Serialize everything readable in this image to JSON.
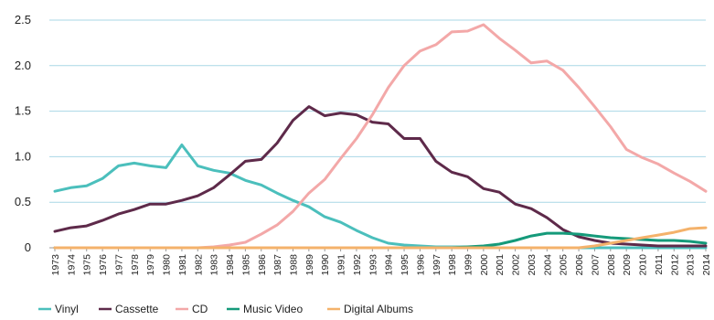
{
  "chart_data": {
    "type": "line",
    "title": "",
    "xlabel": "",
    "ylabel": "",
    "ylim": [
      0,
      2.5
    ],
    "yticks": [
      "0",
      "0.5",
      "1.0",
      "1.5",
      "2.0",
      "2.5"
    ],
    "grid": true,
    "legend_position": "bottom",
    "x": [
      "1973",
      "1974",
      "1975",
      "1976",
      "1977",
      "1978",
      "1979",
      "1980",
      "1981",
      "1982",
      "1983",
      "1984",
      "1985",
      "1986",
      "1987",
      "1988",
      "1989",
      "1990",
      "1991",
      "1992",
      "1993",
      "1994",
      "1995",
      "1996",
      "1997",
      "1998",
      "1999",
      "2000",
      "2001",
      "2002",
      "2003",
      "2004",
      "2005",
      "2006",
      "2007",
      "2008",
      "2009",
      "2010",
      "2011",
      "2012",
      "2013",
      "2014"
    ],
    "series": [
      {
        "name": "Vinyl",
        "color": "#4bbfbc",
        "values": [
          0.62,
          0.66,
          0.68,
          0.76,
          0.9,
          0.93,
          0.9,
          0.88,
          1.13,
          0.9,
          0.85,
          0.82,
          0.74,
          0.69,
          0.6,
          0.52,
          0.45,
          0.34,
          0.28,
          0.19,
          0.11,
          0.05,
          0.03,
          0.02,
          0.01,
          0.01,
          0.01,
          0.01,
          0.0,
          0.0,
          0.0,
          0.0,
          0.0,
          0.0,
          0.0,
          0.0,
          0.0,
          0.0,
          0.0,
          0.0,
          0.0,
          0.0
        ]
      },
      {
        "name": "Cassette",
        "color": "#5e2a4a",
        "values": [
          0.18,
          0.22,
          0.24,
          0.3,
          0.37,
          0.42,
          0.48,
          0.48,
          0.52,
          0.57,
          0.66,
          0.8,
          0.95,
          0.97,
          1.15,
          1.4,
          1.55,
          1.45,
          1.48,
          1.46,
          1.38,
          1.36,
          1.2,
          1.2,
          0.95,
          0.83,
          0.78,
          0.65,
          0.61,
          0.48,
          0.43,
          0.33,
          0.2,
          0.12,
          0.08,
          0.05,
          0.04,
          0.03,
          0.02,
          0.02,
          0.02,
          0.02
        ]
      },
      {
        "name": "CD",
        "color": "#f3a8a8",
        "values": [
          0.0,
          0.0,
          0.0,
          0.0,
          0.0,
          0.0,
          0.0,
          0.0,
          0.0,
          0.0,
          0.01,
          0.03,
          0.06,
          0.15,
          0.25,
          0.4,
          0.6,
          0.75,
          0.98,
          1.2,
          1.46,
          1.76,
          2.0,
          2.16,
          2.23,
          2.37,
          2.38,
          2.45,
          2.3,
          2.17,
          2.03,
          2.05,
          1.95,
          1.76,
          1.55,
          1.33,
          1.08,
          0.99,
          0.92,
          0.82,
          0.73,
          0.62
        ]
      },
      {
        "name": "Music Video",
        "color": "#159a7a",
        "values": [
          0.0,
          0.0,
          0.0,
          0.0,
          0.0,
          0.0,
          0.0,
          0.0,
          0.0,
          0.0,
          0.0,
          0.0,
          0.0,
          0.0,
          0.0,
          0.0,
          0.0,
          0.0,
          0.0,
          0.0,
          0.0,
          0.0,
          0.0,
          0.0,
          0.0,
          0.0,
          0.01,
          0.02,
          0.04,
          0.08,
          0.13,
          0.16,
          0.16,
          0.15,
          0.13,
          0.11,
          0.1,
          0.09,
          0.08,
          0.08,
          0.07,
          0.05
        ]
      },
      {
        "name": "Digital Albums",
        "color": "#f4b26b",
        "values": [
          0.0,
          0.0,
          0.0,
          0.0,
          0.0,
          0.0,
          0.0,
          0.0,
          0.0,
          0.0,
          0.0,
          0.0,
          0.0,
          0.0,
          0.0,
          0.0,
          0.0,
          0.0,
          0.0,
          0.0,
          0.0,
          0.0,
          0.0,
          0.0,
          0.0,
          0.0,
          0.0,
          0.0,
          0.0,
          0.0,
          0.0,
          0.0,
          0.0,
          0.0,
          0.02,
          0.05,
          0.08,
          0.11,
          0.14,
          0.17,
          0.21,
          0.22
        ]
      }
    ]
  }
}
